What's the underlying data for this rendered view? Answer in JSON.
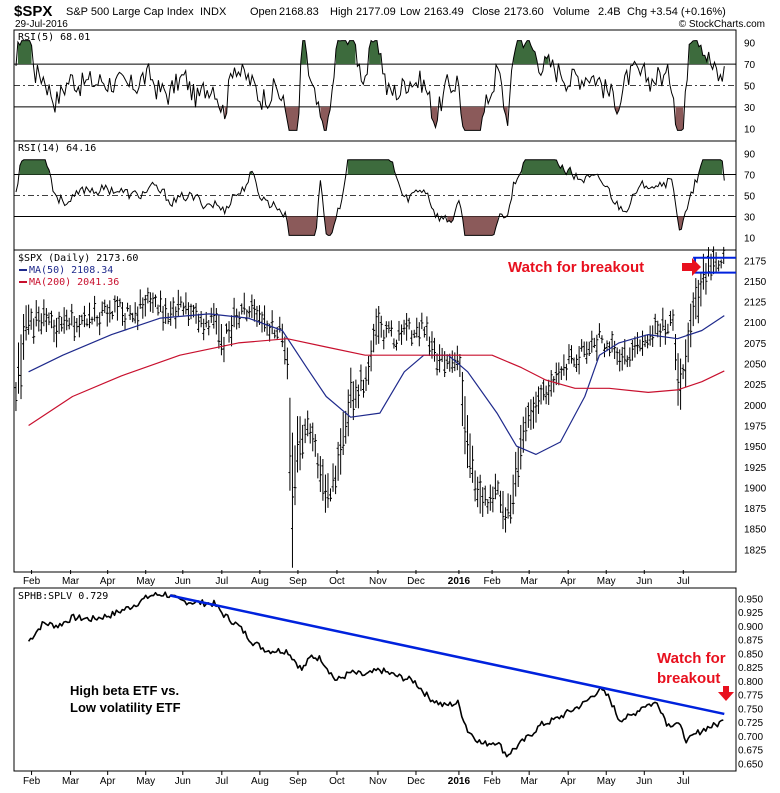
{
  "header": {
    "symbol": "$SPX",
    "name": "S&P 500 Large Cap Index",
    "exchange": "INDX",
    "date": "29-Jul-2016",
    "open_label": "Open",
    "open": "2168.83",
    "high_label": "High",
    "high": "2177.09",
    "low_label": "Low",
    "low": "2163.49",
    "close_label": "Close",
    "close": "2173.60",
    "volume_label": "Volume",
    "volume": "2.4B",
    "chg_label": "Chg",
    "chg": "+3.54 (+0.16%)",
    "brand": "© StockCharts.com"
  },
  "chart_data": [
    {
      "type": "line",
      "panel": "rsi5",
      "title": "RSI(5) 68.01",
      "ylim": [
        0,
        100
      ],
      "yticks": [
        10,
        30,
        50,
        70,
        90
      ],
      "reference_lines": [
        30,
        50,
        70
      ],
      "last_value": 68.01,
      "colors": {
        "line": "#000000",
        "overbought_fill": "#3d6b3d",
        "oversold_fill": "#8b5a5a"
      }
    },
    {
      "type": "line",
      "panel": "rsi14",
      "title": "RSI(14) 64.16",
      "ylim": [
        0,
        100
      ],
      "yticks": [
        10,
        30,
        50,
        70,
        90
      ],
      "reference_lines": [
        30,
        50,
        70
      ],
      "last_value": 64.16,
      "colors": {
        "line": "#000000",
        "overbought_fill": "#3d6b3d",
        "oversold_fill": "#8b5a5a"
      }
    },
    {
      "type": "ohlc",
      "panel": "price",
      "title": "$SPX (Daily) 2173.60",
      "ylim": [
        1800,
        2185
      ],
      "yticks": [
        1825,
        1850,
        1875,
        1900,
        1925,
        1950,
        1975,
        2000,
        2025,
        2050,
        2075,
        2100,
        2125,
        2150,
        2175
      ],
      "x_month_labels": [
        "Feb",
        "Mar",
        "Apr",
        "May",
        "Jun",
        "Jul",
        "Aug",
        "Sep",
        "Oct",
        "Nov",
        "Dec",
        "2016",
        "Feb",
        "Mar",
        "Apr",
        "May",
        "Jun",
        "Jul"
      ],
      "legend": [
        {
          "label": "MA(50) 2108.34",
          "color": "#1f2a8c"
        },
        {
          "label": "MA(200) 2041.36",
          "color": "#c8102e"
        }
      ],
      "close_path": [
        [
          1,
          1990
        ],
        [
          5,
          2040
        ],
        [
          12,
          2090
        ],
        [
          30,
          2110
        ],
        [
          45,
          2090
        ],
        [
          60,
          2100
        ],
        [
          80,
          2105
        ],
        [
          100,
          2115
        ],
        [
          120,
          2110
        ],
        [
          140,
          2125
        ],
        [
          160,
          2110
        ],
        [
          175,
          2120
        ],
        [
          190,
          2100
        ],
        [
          205,
          2105
        ],
        [
          215,
          2075
        ],
        [
          225,
          2105
        ],
        [
          240,
          2115
        ],
        [
          255,
          2100
        ],
        [
          270,
          2095
        ],
        [
          280,
          2060
        ],
        [
          285,
          1880
        ],
        [
          292,
          1960
        ],
        [
          300,
          1970
        ],
        [
          310,
          1945
        ],
        [
          320,
          1880
        ],
        [
          330,
          1920
        ],
        [
          345,
          2010
        ],
        [
          360,
          2030
        ],
        [
          372,
          2095
        ],
        [
          385,
          2085
        ],
        [
          395,
          2080
        ],
        [
          405,
          2090
        ],
        [
          420,
          2095
        ],
        [
          432,
          2055
        ],
        [
          445,
          2050
        ],
        [
          455,
          2060
        ],
        [
          465,
          1950
        ],
        [
          475,
          1895
        ],
        [
          485,
          1880
        ],
        [
          495,
          1900
        ],
        [
          505,
          1860
        ],
        [
          515,
          1920
        ],
        [
          525,
          1970
        ],
        [
          535,
          2000
        ],
        [
          545,
          2020
        ],
        [
          560,
          2045
        ],
        [
          575,
          2055
        ],
        [
          590,
          2075
        ],
        [
          600,
          2080
        ],
        [
          610,
          2070
        ],
        [
          620,
          2055
        ],
        [
          635,
          2070
        ],
        [
          650,
          2080
        ],
        [
          665,
          2095
        ],
        [
          675,
          2100
        ],
        [
          682,
          2020
        ],
        [
          690,
          2070
        ],
        [
          698,
          2120
        ],
        [
          705,
          2150
        ],
        [
          712,
          2165
        ],
        [
          720,
          2172
        ],
        [
          728,
          2174
        ]
      ],
      "ma50_path": [
        [
          15,
          2040
        ],
        [
          50,
          2060
        ],
        [
          100,
          2085
        ],
        [
          150,
          2105
        ],
        [
          200,
          2110
        ],
        [
          240,
          2105
        ],
        [
          275,
          2090
        ],
        [
          300,
          2045
        ],
        [
          320,
          2010
        ],
        [
          345,
          1985
        ],
        [
          375,
          1990
        ],
        [
          400,
          2040
        ],
        [
          420,
          2060
        ],
        [
          445,
          2060
        ],
        [
          465,
          2040
        ],
        [
          495,
          1990
        ],
        [
          515,
          1950
        ],
        [
          535,
          1940
        ],
        [
          560,
          1955
        ],
        [
          585,
          2010
        ],
        [
          600,
          2060
        ],
        [
          620,
          2075
        ],
        [
          650,
          2085
        ],
        [
          680,
          2080
        ],
        [
          705,
          2090
        ],
        [
          728,
          2108
        ]
      ],
      "ma200_path": [
        [
          15,
          1975
        ],
        [
          60,
          2010
        ],
        [
          110,
          2035
        ],
        [
          170,
          2060
        ],
        [
          230,
          2075
        ],
        [
          280,
          2080
        ],
        [
          320,
          2070
        ],
        [
          360,
          2060
        ],
        [
          410,
          2060
        ],
        [
          450,
          2060
        ],
        [
          490,
          2060
        ],
        [
          520,
          2045
        ],
        [
          545,
          2030
        ],
        [
          575,
          2020
        ],
        [
          610,
          2020
        ],
        [
          650,
          2015
        ],
        [
          680,
          2018
        ],
        [
          705,
          2028
        ],
        [
          728,
          2041
        ]
      ],
      "breakout_box": {
        "low": 2160,
        "high": 2178
      }
    },
    {
      "type": "line",
      "panel": "ratio",
      "title": "SPHB:SPLV 0.729",
      "ylim": [
        0.64,
        0.965
      ],
      "yticks": [
        0.65,
        0.675,
        0.7,
        0.725,
        0.75,
        0.775,
        0.8,
        0.825,
        0.85,
        0.875,
        0.9,
        0.925,
        0.95
      ],
      "x_month_labels": [
        "Feb",
        "Mar",
        "Apr",
        "May",
        "Jun",
        "Jul",
        "Aug",
        "Sep",
        "Oct",
        "Nov",
        "Dec",
        "2016",
        "Feb",
        "Mar",
        "Apr",
        "May",
        "Jun",
        "Jul"
      ],
      "path": [
        [
          15,
          0.872
        ],
        [
          30,
          0.905
        ],
        [
          45,
          0.9
        ],
        [
          60,
          0.915
        ],
        [
          80,
          0.912
        ],
        [
          100,
          0.92
        ],
        [
          120,
          0.935
        ],
        [
          140,
          0.955
        ],
        [
          155,
          0.958
        ],
        [
          170,
          0.945
        ],
        [
          190,
          0.942
        ],
        [
          205,
          0.94
        ],
        [
          215,
          0.92
        ],
        [
          230,
          0.9
        ],
        [
          245,
          0.87
        ],
        [
          260,
          0.855
        ],
        [
          280,
          0.855
        ],
        [
          295,
          0.82
        ],
        [
          305,
          0.845
        ],
        [
          315,
          0.84
        ],
        [
          330,
          0.8
        ],
        [
          345,
          0.815
        ],
        [
          360,
          0.81
        ],
        [
          375,
          0.82
        ],
        [
          390,
          0.81
        ],
        [
          410,
          0.8
        ],
        [
          425,
          0.77
        ],
        [
          440,
          0.755
        ],
        [
          455,
          0.76
        ],
        [
          465,
          0.71
        ],
        [
          480,
          0.685
        ],
        [
          495,
          0.69
        ],
        [
          505,
          0.665
        ],
        [
          515,
          0.68
        ],
        [
          525,
          0.695
        ],
        [
          540,
          0.72
        ],
        [
          555,
          0.73
        ],
        [
          570,
          0.745
        ],
        [
          585,
          0.76
        ],
        [
          600,
          0.785
        ],
        [
          610,
          0.77
        ],
        [
          620,
          0.73
        ],
        [
          632,
          0.735
        ],
        [
          645,
          0.755
        ],
        [
          660,
          0.76
        ],
        [
          670,
          0.72
        ],
        [
          680,
          0.725
        ],
        [
          690,
          0.69
        ],
        [
          700,
          0.705
        ],
        [
          710,
          0.715
        ],
        [
          720,
          0.72
        ],
        [
          728,
          0.729
        ]
      ],
      "trendline": {
        "from": [
          160,
          0.955
        ],
        "to": [
          728,
          0.74
        ],
        "color": "#0022dd"
      }
    }
  ],
  "annotations": {
    "breakout_price": "Watch for breakout",
    "breakout_ratio_line1": "Watch for",
    "breakout_ratio_line2": "breakout",
    "ratio_note_line1": "High beta ETF vs.",
    "ratio_note_line2": "Low volatility ETF",
    "color": "#e8101e"
  }
}
